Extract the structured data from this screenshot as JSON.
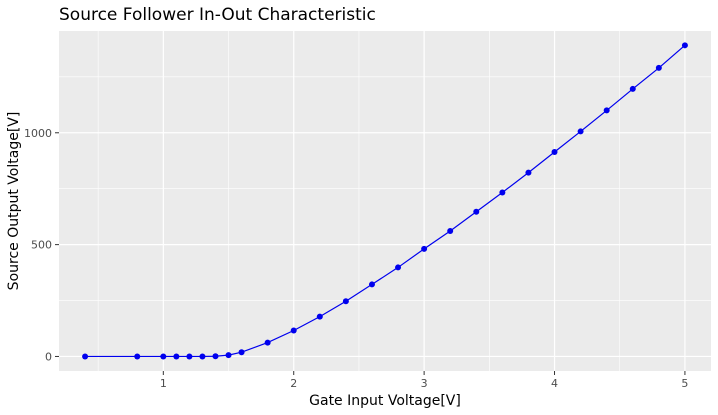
{
  "chart_data": {
    "type": "line",
    "title": "Source Follower In-Out Characteristic",
    "xlabel": "Gate Input Voltage[V]",
    "ylabel": "Source Output Voltage[V]",
    "xlim": [
      0.2,
      5.2
    ],
    "ylim": [
      -65,
      1455
    ],
    "xticks": [
      1,
      2,
      3,
      4,
      5
    ],
    "xtick_labels": [
      "1",
      "2",
      "3",
      "4",
      "5"
    ],
    "yticks": [
      0,
      500,
      1000
    ],
    "ytick_labels": [
      "0",
      "500",
      "1000"
    ],
    "grid": true,
    "legend": "none",
    "colors": {
      "panel": "#ebebeb",
      "grid": "#ffffff",
      "series": "#0000ee"
    },
    "series": [
      {
        "x": [
          0.4,
          0.8,
          1.0,
          1.1,
          1.2,
          1.3,
          1.4,
          1.5,
          1.6,
          1.8,
          2.0,
          2.2,
          2.4,
          2.6,
          2.8,
          3.0,
          3.2,
          3.4,
          3.6,
          3.8,
          4.0,
          4.2,
          4.4,
          4.6,
          4.8,
          5.0
        ],
        "y": [
          0,
          0,
          0,
          0,
          0,
          0,
          1,
          6,
          19,
          62,
          116,
          178,
          247,
          322,
          398,
          481,
          561,
          647,
          733,
          822,
          914,
          1006,
          1100,
          1196,
          1290,
          1391
        ]
      }
    ]
  }
}
